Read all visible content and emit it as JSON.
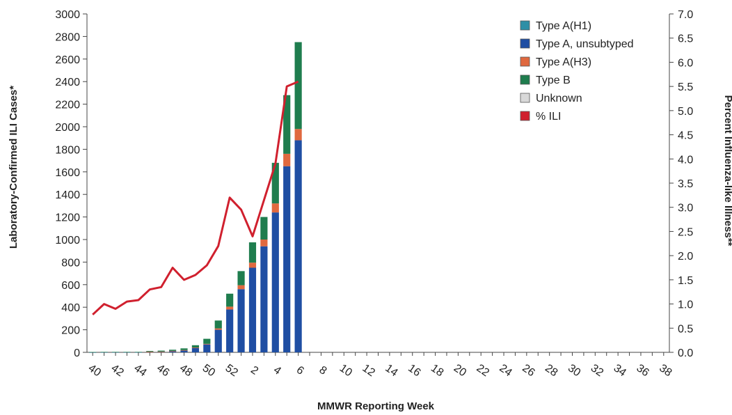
{
  "chart_data": {
    "type": "bar",
    "xlabel": "MMWR Reporting Week",
    "ylabel": "Laboratory-Confirmed ILI Cases*",
    "y2label": "Percent Influenza-like Illness**",
    "ylim": [
      0,
      3000
    ],
    "y_ticks": [
      0,
      200,
      400,
      600,
      800,
      1000,
      1200,
      1400,
      1600,
      1800,
      2000,
      2200,
      2400,
      2600,
      2800,
      3000
    ],
    "y2lim": [
      0,
      7.0
    ],
    "y2_ticks": [
      "0.0",
      "0.5",
      "1.0",
      "1.5",
      "2.0",
      "2.5",
      "3.0",
      "3.5",
      "4.0",
      "4.5",
      "5.0",
      "5.5",
      "6.0",
      "6.5",
      "7.0"
    ],
    "grid": false,
    "legend_position": "top-right",
    "stacked": true,
    "weeks": [
      40,
      41,
      42,
      43,
      44,
      45,
      46,
      47,
      48,
      49,
      50,
      51,
      52,
      1,
      2,
      3,
      4,
      5,
      6,
      7,
      8,
      9,
      10,
      11,
      12,
      13,
      14,
      15,
      16,
      17,
      18,
      19,
      20,
      21,
      22,
      23,
      24,
      25,
      26,
      27,
      28,
      29,
      30,
      31,
      32,
      33,
      34,
      35,
      36,
      37,
      38
    ],
    "x_tick_labels": [
      "40",
      "42",
      "44",
      "46",
      "48",
      "50",
      "52",
      "2",
      "4",
      "6",
      "8",
      "10",
      "12",
      "14",
      "16",
      "18",
      "20",
      "22",
      "24",
      "26",
      "28",
      "30",
      "32",
      "34",
      "36",
      "38"
    ],
    "series": [
      {
        "name": "Type A(H1)",
        "color": "#2e8fa6",
        "values": [
          0,
          0,
          0,
          0,
          0,
          0,
          0,
          0,
          0,
          0,
          0,
          0,
          0,
          0,
          0,
          0,
          0,
          0,
          0
        ]
      },
      {
        "name": "Type A, unsubtyped",
        "color": "#1f4ea3",
        "values": [
          1,
          2,
          2,
          2,
          2,
          5,
          6,
          12,
          18,
          40,
          70,
          200,
          380,
          560,
          750,
          940,
          1240,
          1650,
          1880
        ]
      },
      {
        "name": "Type A(H3)",
        "color": "#e0693f",
        "values": [
          0,
          0,
          0,
          0,
          0,
          1,
          1,
          1,
          2,
          3,
          5,
          12,
          25,
          35,
          45,
          60,
          80,
          110,
          100
        ]
      },
      {
        "name": "Type B",
        "color": "#1f7d4e",
        "values": [
          2,
          2,
          2,
          2,
          2,
          6,
          8,
          10,
          15,
          20,
          45,
          70,
          115,
          125,
          180,
          200,
          360,
          520,
          770
        ]
      },
      {
        "name": "Unknown",
        "color": "#d9d9d9",
        "values": [
          0,
          0,
          0,
          0,
          0,
          0,
          0,
          0,
          0,
          0,
          0,
          0,
          0,
          0,
          0,
          0,
          0,
          0,
          0
        ]
      }
    ],
    "ili": {
      "name": "% ILI",
      "color": "#d0202e",
      "values": [
        0.78,
        1.0,
        0.9,
        1.05,
        1.08,
        1.3,
        1.35,
        1.75,
        1.5,
        1.6,
        1.8,
        2.2,
        3.2,
        2.95,
        2.4,
        3.15,
        3.9,
        5.5,
        5.6
      ]
    }
  }
}
